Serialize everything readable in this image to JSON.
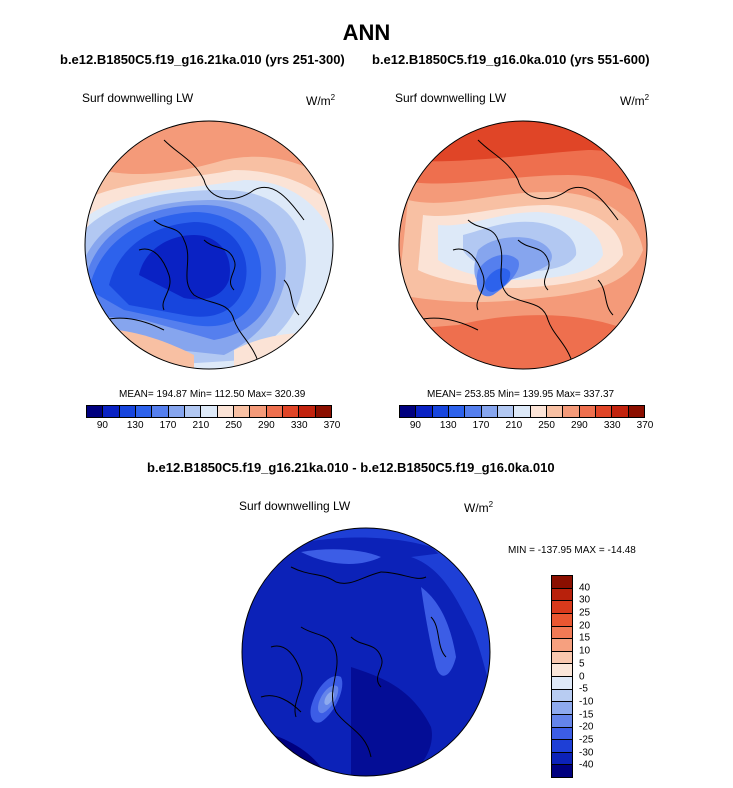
{
  "title": "ANN",
  "panels": [
    {
      "case": "b.e12.B1850C5.f19_g16.21ka.010 (yrs 251-300)",
      "field": "Surf downwelling LW",
      "units_base": "W/m",
      "units_exp": "2",
      "stats": "MEAN= 194.87  Min= 112.50  Max= 320.39"
    },
    {
      "case": "b.e12.B1850C5.f19_g16.0ka.010 (yrs 551-600)",
      "field": "Surf downwelling LW",
      "units_base": "W/m",
      "units_exp": "2",
      "stats": "MEAN= 253.85  Min= 139.95  Max= 337.37"
    }
  ],
  "diff": {
    "title": "b.e12.B1850C5.f19_g16.21ka.010 - b.e12.B1850C5.f19_g16.0ka.010",
    "field": "Surf downwelling LW",
    "units_base": "W/m",
    "units_exp": "2",
    "stats": "MIN = -137.95 MAX = -14.48"
  },
  "colorbar_top": {
    "colors": [
      "#00007f",
      "#0a22c4",
      "#1745dd",
      "#2d62ec",
      "#557fee",
      "#86a5ee",
      "#b2c8f2",
      "#dde9f8",
      "#fbe3d6",
      "#f8c0a3",
      "#f49a79",
      "#ee6f4e",
      "#e04527",
      "#c2230e",
      "#8b0f00"
    ],
    "tick_labels": [
      "90",
      "130",
      "170",
      "210",
      "250",
      "290",
      "330",
      "370"
    ]
  },
  "colorbar_diff": {
    "colors": [
      "#8b0f00",
      "#b8210c",
      "#d93a1c",
      "#ea5731",
      "#f27a55",
      "#f6a07f",
      "#f9c7ae",
      "#fbe6d9",
      "#dfe9f8",
      "#b8ccf2",
      "#8eaaee",
      "#6484ea",
      "#3c5de6",
      "#1e3fd6",
      "#0c22b8",
      "#00007f"
    ],
    "labels": [
      "40",
      "30",
      "25",
      "20",
      "15",
      "10",
      "5",
      "0",
      "-5",
      "-10",
      "-15",
      "-20",
      "-25",
      "-30",
      "-40"
    ]
  }
}
